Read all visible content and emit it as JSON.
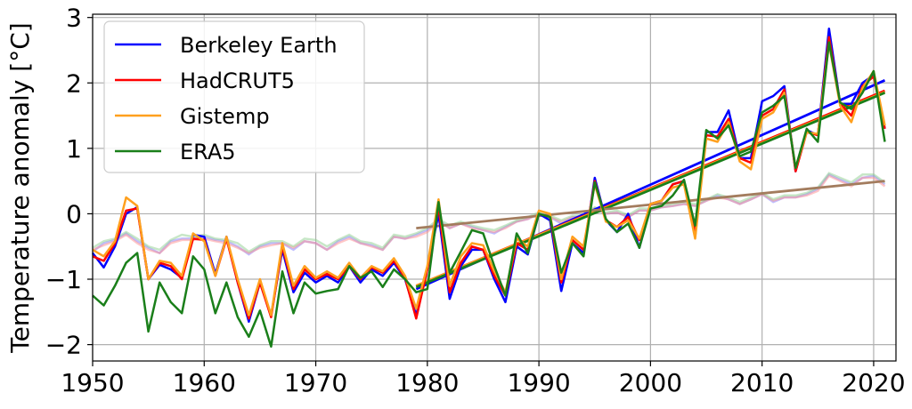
{
  "chart_data": {
    "type": "line",
    "title": "",
    "xlabel": "",
    "ylabel": "Temperature anomaly [°C]",
    "xlim": [
      1950,
      2022
    ],
    "ylim": [
      -2.25,
      3.05
    ],
    "xticks": [
      1950,
      1960,
      1970,
      1980,
      1990,
      2000,
      2010,
      2020
    ],
    "yticks": [
      -2,
      -1,
      0,
      1,
      2,
      3
    ],
    "xtick_labels": [
      "1950",
      "1960",
      "1970",
      "1980",
      "1990",
      "2000",
      "2010",
      "2020"
    ],
    "ytick_labels": [
      "−2",
      "−1",
      "0",
      "1",
      "2",
      "3"
    ],
    "grid": true,
    "legend_position": "top-left",
    "x": [
      1950,
      1951,
      1952,
      1953,
      1954,
      1955,
      1956,
      1957,
      1958,
      1959,
      1960,
      1961,
      1962,
      1963,
      1964,
      1965,
      1966,
      1967,
      1968,
      1969,
      1970,
      1971,
      1972,
      1973,
      1974,
      1975,
      1976,
      1977,
      1978,
      1979,
      1980,
      1981,
      1982,
      1983,
      1984,
      1985,
      1986,
      1987,
      1988,
      1989,
      1990,
      1991,
      1992,
      1993,
      1994,
      1995,
      1996,
      1997,
      1998,
      1999,
      2000,
      2001,
      2002,
      2003,
      2004,
      2005,
      2006,
      2007,
      2008,
      2009,
      2010,
      2011,
      2012,
      2013,
      2014,
      2015,
      2016,
      2017,
      2018,
      2019,
      2020,
      2021
    ],
    "series": [
      {
        "name": "Berkeley Earth",
        "color": "#0000ff",
        "values": [
          -0.6,
          -0.82,
          -0.5,
          0.0,
          0.1,
          -1.0,
          -0.78,
          -0.85,
          -0.98,
          -0.32,
          -0.35,
          -0.92,
          -0.35,
          -1.05,
          -1.65,
          -1.05,
          -1.55,
          -0.55,
          -1.2,
          -0.9,
          -1.05,
          -0.95,
          -1.05,
          -0.8,
          -1.05,
          -0.85,
          -0.95,
          -0.75,
          -1.0,
          -1.55,
          -0.85,
          0.0,
          -1.3,
          -0.8,
          -0.55,
          -0.55,
          -1.0,
          -1.35,
          -0.5,
          -0.62,
          0.0,
          -0.1,
          -1.18,
          -0.45,
          -0.6,
          0.55,
          -0.1,
          -0.28,
          0.0,
          -0.52,
          0.15,
          0.2,
          0.45,
          0.5,
          -0.35,
          1.25,
          1.25,
          1.58,
          0.85,
          0.85,
          1.72,
          1.8,
          1.95,
          0.65,
          1.28,
          1.2,
          2.83,
          1.68,
          1.68,
          2.0,
          2.12,
          1.3
        ]
      },
      {
        "name": "HadCRUT5",
        "color": "#ff0000",
        "values": [
          -0.65,
          -0.72,
          -0.45,
          0.05,
          0.08,
          -1.0,
          -0.75,
          -0.8,
          -1.0,
          -0.38,
          -0.4,
          -0.95,
          -0.38,
          -1.05,
          -1.6,
          -1.05,
          -1.58,
          -0.5,
          -1.15,
          -0.85,
          -1.0,
          -0.92,
          -1.0,
          -0.8,
          -1.0,
          -0.82,
          -0.9,
          -0.72,
          -0.98,
          -1.6,
          -0.85,
          0.1,
          -1.2,
          -0.75,
          -0.5,
          -0.55,
          -0.95,
          -1.25,
          -0.45,
          -0.55,
          0.0,
          -0.05,
          -1.05,
          -0.4,
          -0.55,
          0.5,
          -0.1,
          -0.2,
          -0.05,
          -0.4,
          0.15,
          0.2,
          0.45,
          0.5,
          -0.3,
          1.2,
          1.18,
          1.45,
          0.85,
          0.78,
          1.5,
          1.6,
          1.9,
          0.65,
          1.25,
          1.2,
          2.7,
          1.68,
          1.5,
          1.95,
          2.1,
          1.3
        ]
      },
      {
        "name": "Gistemp",
        "color": "#ffa01e",
        "values": [
          -0.55,
          -0.65,
          -0.42,
          0.25,
          0.12,
          -1.0,
          -0.72,
          -0.75,
          -0.95,
          -0.3,
          -0.42,
          -0.95,
          -0.35,
          -1.0,
          -1.55,
          -1.0,
          -1.55,
          -0.45,
          -1.1,
          -0.8,
          -0.98,
          -0.88,
          -0.98,
          -0.75,
          -0.98,
          -0.8,
          -0.88,
          -0.68,
          -0.95,
          -1.45,
          -0.8,
          0.22,
          -1.1,
          -0.65,
          -0.45,
          -0.48,
          -0.88,
          -1.2,
          -0.38,
          -0.5,
          0.05,
          0.0,
          -1.0,
          -0.35,
          -0.5,
          0.45,
          -0.12,
          -0.2,
          -0.1,
          -0.38,
          0.15,
          0.2,
          0.4,
          0.45,
          -0.38,
          1.15,
          1.1,
          1.4,
          0.8,
          0.68,
          1.45,
          1.55,
          1.85,
          0.7,
          1.25,
          1.22,
          2.6,
          1.65,
          1.4,
          1.92,
          2.18,
          1.35
        ]
      },
      {
        "name": "ERA5",
        "color": "#1a7f1a",
        "values": [
          -1.25,
          -1.4,
          -1.1,
          -0.75,
          -0.6,
          -1.8,
          -1.05,
          -1.35,
          -1.52,
          -0.65,
          -0.85,
          -1.52,
          -1.05,
          -1.58,
          -1.88,
          -1.48,
          -2.03,
          -0.88,
          -1.52,
          -1.05,
          -1.22,
          -1.18,
          -1.15,
          -0.8,
          -0.98,
          -0.88,
          -1.12,
          -0.85,
          -1.0,
          -1.2,
          -1.15,
          0.18,
          -0.9,
          -0.58,
          -0.25,
          -0.3,
          -0.8,
          -1.25,
          -0.3,
          -0.6,
          0.0,
          -0.05,
          -0.9,
          -0.45,
          -0.65,
          0.48,
          -0.08,
          -0.28,
          -0.15,
          -0.52,
          0.08,
          0.12,
          0.28,
          0.52,
          -0.18,
          1.28,
          1.15,
          1.35,
          0.88,
          0.95,
          1.55,
          1.65,
          1.8,
          0.7,
          1.3,
          1.1,
          2.62,
          1.7,
          1.6,
          1.85,
          2.18,
          1.1
        ]
      }
    ],
    "trend_lines": [
      {
        "color": "#0000ff",
        "x": [
          1979,
          2021
        ],
        "values": [
          -1.15,
          2.04
        ]
      },
      {
        "color": "#ff0000",
        "x": [
          1979,
          2021
        ],
        "values": [
          -1.1,
          1.88
        ]
      },
      {
        "color": "#ffa01e",
        "x": [
          1979,
          2021
        ],
        "values": [
          -1.1,
          1.86
        ]
      },
      {
        "color": "#1a7f1a",
        "x": [
          1979,
          2021
        ],
        "values": [
          -1.12,
          1.85
        ]
      },
      {
        "color": "#a37c5e",
        "x": [
          1979,
          2021
        ],
        "values": [
          -0.22,
          0.5
        ]
      }
    ],
    "faint_series": [
      {
        "color": "#8080ff",
        "values": [
          -0.58,
          -0.45,
          -0.4,
          -0.3,
          -0.42,
          -0.52,
          -0.6,
          -0.42,
          -0.38,
          -0.38,
          -0.35,
          -0.4,
          -0.42,
          -0.5,
          -0.62,
          -0.5,
          -0.45,
          -0.45,
          -0.55,
          -0.42,
          -0.45,
          -0.55,
          -0.42,
          -0.35,
          -0.45,
          -0.48,
          -0.55,
          -0.35,
          -0.38,
          -0.32,
          -0.25,
          -0.1,
          -0.22,
          -0.15,
          -0.2,
          -0.25,
          -0.3,
          -0.2,
          -0.12,
          -0.08,
          0.0,
          -0.05,
          -0.15,
          -0.05,
          -0.05,
          0.08,
          0.0,
          0.02,
          -0.05,
          0.05,
          0.05,
          0.1,
          0.12,
          0.15,
          0.12,
          0.2,
          0.28,
          0.22,
          0.15,
          0.22,
          0.3,
          0.18,
          0.25,
          0.25,
          0.3,
          0.38,
          0.6,
          0.52,
          0.45,
          0.55,
          0.58,
          0.45
        ]
      },
      {
        "color": "#ff9090",
        "values": [
          -0.55,
          -0.48,
          -0.42,
          -0.32,
          -0.45,
          -0.55,
          -0.6,
          -0.45,
          -0.4,
          -0.4,
          -0.38,
          -0.42,
          -0.45,
          -0.52,
          -0.6,
          -0.52,
          -0.48,
          -0.45,
          -0.52,
          -0.42,
          -0.45,
          -0.55,
          -0.45,
          -0.38,
          -0.45,
          -0.5,
          -0.55,
          -0.35,
          -0.38,
          -0.35,
          -0.28,
          -0.12,
          -0.22,
          -0.15,
          -0.22,
          -0.25,
          -0.28,
          -0.22,
          -0.12,
          -0.08,
          0.0,
          -0.05,
          -0.12,
          -0.05,
          -0.05,
          0.08,
          0.0,
          0.02,
          -0.05,
          0.05,
          0.05,
          0.1,
          0.12,
          0.15,
          0.12,
          0.2,
          0.25,
          0.22,
          0.15,
          0.22,
          0.3,
          0.2,
          0.25,
          0.25,
          0.28,
          0.35,
          0.58,
          0.5,
          0.42,
          0.55,
          0.55,
          0.42
        ]
      },
      {
        "color": "#90d090",
        "values": [
          -0.52,
          -0.42,
          -0.38,
          -0.28,
          -0.38,
          -0.5,
          -0.55,
          -0.4,
          -0.32,
          -0.35,
          -0.32,
          -0.38,
          -0.4,
          -0.45,
          -0.58,
          -0.48,
          -0.42,
          -0.42,
          -0.5,
          -0.38,
          -0.4,
          -0.5,
          -0.4,
          -0.32,
          -0.42,
          -0.45,
          -0.52,
          -0.32,
          -0.35,
          -0.3,
          -0.22,
          -0.08,
          -0.18,
          -0.12,
          -0.18,
          -0.22,
          -0.25,
          -0.18,
          -0.1,
          -0.05,
          0.02,
          -0.03,
          -0.1,
          -0.03,
          -0.03,
          0.1,
          0.02,
          0.05,
          -0.02,
          0.08,
          0.08,
          0.12,
          0.15,
          0.18,
          0.15,
          0.22,
          0.3,
          0.25,
          0.18,
          0.25,
          0.32,
          0.22,
          0.28,
          0.28,
          0.32,
          0.4,
          0.62,
          0.55,
          0.48,
          0.6,
          0.6,
          0.48
        ]
      }
    ]
  }
}
